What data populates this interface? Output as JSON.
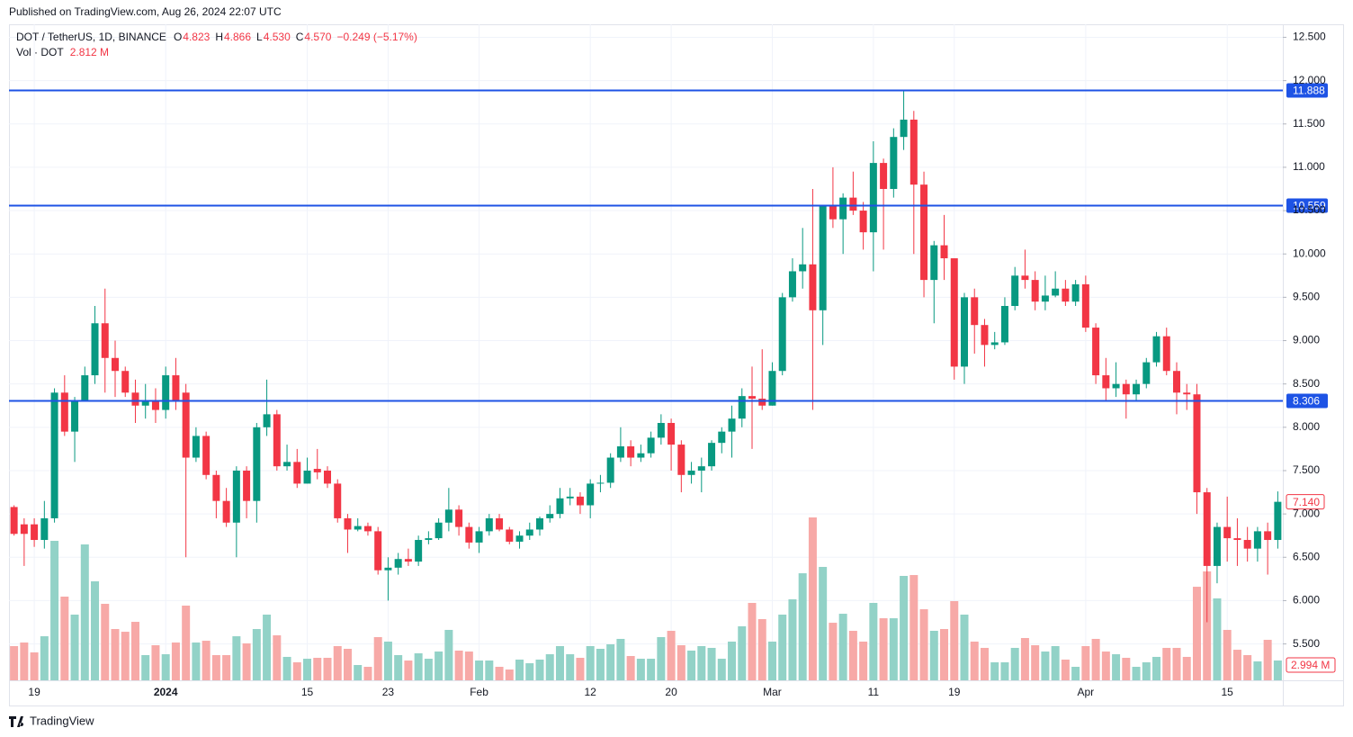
{
  "published": "Published on TradingView.com, Aug 26, 2024 22:07 UTC",
  "brand": "TradingView",
  "chart_data": {
    "type": "candlestick",
    "title": "DOT / TetherUS, 1D, BINANCE",
    "legend_items": [
      {
        "key": "O",
        "value": "4.823"
      },
      {
        "key": "H",
        "value": "4.866"
      },
      {
        "key": "L",
        "value": "4.530"
      },
      {
        "key": "C",
        "value": "4.570"
      }
    ],
    "change": "−0.249 (−5.17%)",
    "volume_title": "Vol · DOT",
    "volume_value": "2.812 M",
    "up_color": "#089981",
    "down_color": "#f23645",
    "volume_up_color": "#92d2c7",
    "volume_down_color": "#f7a9a7",
    "level_color": "#1e53e5",
    "grid": true,
    "categories": [
      null,
      null,
      "19",
      null,
      null,
      null,
      null,
      null,
      null,
      null,
      null,
      null,
      null,
      null,
      null,
      "2024",
      null,
      null,
      null,
      null,
      null,
      null,
      null,
      null,
      null,
      null,
      null,
      null,
      null,
      "15",
      null,
      null,
      null,
      null,
      null,
      null,
      null,
      "23",
      null,
      null,
      null,
      null,
      null,
      null,
      null,
      null,
      "Feb",
      null,
      null,
      null,
      null,
      null,
      null,
      null,
      null,
      null,
      null,
      "12",
      null,
      null,
      null,
      null,
      null,
      null,
      null,
      "20",
      null,
      null,
      null,
      null,
      null,
      null,
      null,
      null,
      null,
      "Mar",
      null,
      null,
      null,
      null,
      null,
      null,
      null,
      null,
      null,
      "11",
      null,
      null,
      null,
      null,
      null,
      null,
      null,
      "19",
      null,
      null,
      null,
      null,
      null,
      null,
      null,
      null,
      null,
      null,
      null,
      null,
      "Apr",
      null,
      null,
      null,
      null,
      null,
      null,
      null,
      null,
      null,
      null,
      null,
      null,
      null,
      "15",
      null,
      null,
      null,
      null,
      null
    ],
    "open": [
      7.08,
      6.88,
      6.88,
      6.7,
      6.95,
      8.4,
      7.95,
      8.3,
      8.6,
      9.2,
      8.8,
      8.65,
      8.4,
      8.25,
      8.3,
      8.2,
      8.6,
      8.4,
      7.65,
      7.9,
      7.45,
      7.15,
      6.9,
      7.5,
      7.15,
      8.0,
      8.15,
      7.55,
      7.6,
      7.35,
      7.52,
      7.5,
      7.35,
      6.95,
      6.82,
      6.86,
      6.8,
      6.35,
      6.38,
      6.48,
      6.45,
      6.7,
      6.72,
      6.9,
      7.05,
      6.85,
      6.67,
      6.8,
      6.95,
      6.82,
      6.68,
      6.75,
      6.82,
      6.95,
      7.0,
      7.18,
      7.2,
      7.1,
      7.35,
      7.36,
      7.65,
      7.78,
      7.65,
      7.7,
      7.88,
      8.05,
      7.8,
      7.45,
      7.5,
      7.55,
      7.82,
      7.95,
      8.1,
      8.36,
      8.33,
      8.25,
      8.65,
      9.5,
      9.8,
      9.88,
      9.35,
      10.55,
      10.4,
      10.65,
      10.5,
      10.25,
      11.05,
      10.75,
      11.35,
      11.55,
      10.8,
      9.7,
      10.1,
      9.95,
      8.7,
      9.5,
      9.18,
      8.95,
      8.98,
      9.4,
      9.75,
      9.7,
      9.45,
      9.52,
      9.6,
      9.45,
      9.65,
      9.15,
      8.6,
      8.45,
      8.5,
      8.38,
      8.5,
      8.75,
      9.05,
      8.65,
      8.4,
      8.38,
      7.25,
      6.4,
      6.85,
      6.72,
      6.7,
      6.6,
      6.8,
      6.7
    ],
    "high": [
      7.1,
      6.95,
      6.95,
      7.15,
      8.45,
      8.6,
      8.35,
      8.7,
      9.4,
      9.6,
      9.0,
      8.7,
      8.55,
      8.5,
      8.45,
      8.7,
      8.8,
      8.5,
      8.0,
      7.95,
      7.5,
      7.3,
      7.55,
      7.55,
      8.05,
      8.55,
      8.2,
      7.8,
      7.75,
      7.65,
      7.75,
      7.55,
      7.4,
      7.0,
      6.95,
      6.9,
      6.85,
      6.5,
      6.55,
      6.6,
      6.75,
      6.8,
      6.95,
      7.3,
      7.1,
      6.9,
      6.85,
      7.0,
      7.0,
      6.85,
      6.8,
      6.9,
      6.97,
      7.1,
      7.3,
      7.3,
      7.25,
      7.4,
      7.45,
      7.7,
      8.0,
      7.85,
      7.8,
      7.95,
      8.15,
      8.1,
      7.85,
      7.6,
      7.65,
      7.85,
      8.0,
      8.25,
      8.45,
      8.7,
      8.9,
      8.75,
      9.55,
      9.95,
      10.3,
      10.75,
      10.55,
      11.0,
      10.7,
      10.95,
      10.6,
      11.3,
      11.1,
      11.45,
      11.888,
      11.65,
      10.95,
      10.15,
      10.45,
      9.95,
      9.55,
      9.6,
      9.25,
      9.1,
      9.5,
      9.85,
      10.05,
      9.8,
      9.75,
      9.8,
      9.7,
      9.7,
      9.75,
      9.2,
      8.8,
      8.75,
      8.55,
      8.55,
      8.8,
      9.1,
      9.15,
      8.75,
      8.5,
      8.5,
      7.3,
      6.9,
      7.2,
      6.95,
      6.85,
      6.85,
      6.9,
      7.26
    ],
    "low": [
      6.75,
      6.4,
      6.62,
      6.6,
      6.9,
      7.9,
      7.6,
      8.3,
      8.5,
      8.4,
      8.35,
      8.35,
      8.05,
      8.1,
      8.05,
      8.1,
      8.2,
      6.5,
      7.6,
      7.4,
      6.95,
      6.85,
      6.5,
      6.95,
      6.9,
      7.9,
      7.5,
      7.5,
      7.3,
      7.35,
      7.4,
      7.3,
      6.9,
      6.55,
      6.8,
      6.75,
      6.3,
      6.0,
      6.3,
      6.4,
      6.4,
      6.65,
      6.7,
      6.8,
      6.75,
      6.6,
      6.55,
      6.75,
      6.8,
      6.65,
      6.6,
      6.7,
      6.75,
      6.9,
      6.95,
      7.1,
      7.0,
      6.95,
      7.25,
      7.3,
      7.6,
      7.55,
      7.6,
      7.65,
      7.8,
      7.5,
      7.25,
      7.35,
      7.25,
      7.5,
      7.7,
      7.65,
      8.0,
      7.75,
      8.2,
      8.25,
      8.6,
      9.45,
      9.6,
      8.2,
      8.95,
      10.3,
      10.0,
      10.45,
      10.05,
      9.8,
      10.05,
      10.65,
      11.2,
      10.0,
      9.5,
      9.2,
      9.7,
      8.55,
      8.5,
      8.85,
      8.7,
      8.9,
      8.95,
      9.35,
      9.6,
      9.35,
      9.35,
      9.5,
      9.4,
      9.4,
      9.1,
      8.5,
      8.3,
      8.35,
      8.1,
      8.3,
      8.45,
      8.7,
      8.6,
      8.15,
      8.2,
      7.0,
      5.75,
      6.2,
      6.45,
      6.4,
      6.45,
      6.45,
      6.3,
      6.6
    ],
    "close": [
      6.77,
      6.77,
      6.7,
      6.95,
      8.4,
      7.95,
      8.3,
      8.6,
      9.2,
      8.8,
      8.65,
      8.4,
      8.25,
      8.3,
      8.2,
      8.6,
      8.3,
      7.65,
      7.9,
      7.45,
      7.15,
      6.9,
      7.5,
      7.15,
      8.0,
      8.15,
      7.55,
      7.6,
      7.35,
      7.5,
      7.48,
      7.35,
      6.95,
      6.82,
      6.86,
      6.8,
      6.35,
      6.38,
      6.48,
      6.45,
      6.7,
      6.72,
      6.9,
      7.05,
      6.85,
      6.67,
      6.8,
      6.95,
      6.82,
      6.68,
      6.75,
      6.82,
      6.95,
      7.0,
      7.18,
      7.2,
      7.1,
      7.35,
      7.36,
      7.65,
      7.78,
      7.65,
      7.7,
      7.88,
      8.05,
      7.8,
      7.45,
      7.5,
      7.55,
      7.82,
      7.95,
      8.1,
      8.36,
      8.33,
      8.25,
      8.65,
      9.5,
      9.8,
      9.88,
      9.35,
      10.55,
      10.4,
      10.65,
      10.5,
      10.25,
      11.05,
      10.75,
      11.35,
      11.55,
      10.8,
      9.7,
      10.1,
      9.95,
      8.7,
      9.5,
      9.18,
      8.95,
      8.98,
      9.4,
      9.75,
      9.7,
      9.45,
      9.52,
      9.6,
      9.45,
      9.65,
      9.15,
      8.6,
      8.45,
      8.5,
      8.38,
      8.5,
      8.75,
      9.05,
      8.65,
      8.4,
      8.38,
      7.25,
      6.4,
      6.85,
      6.72,
      6.7,
      6.6,
      6.8,
      6.7,
      7.14
    ],
    "volume": [
      5.17,
      5.71,
      4.22,
      6.66,
      21.08,
      12.65,
      9.93,
      20.54,
      14.96,
      11.56,
      7.75,
      7.34,
      8.84,
      3.81,
      5.3,
      3.94,
      5.71,
      11.29,
      5.71,
      5.98,
      3.81,
      3.81,
      6.66,
      5.58,
      7.75,
      9.93,
      6.8,
      3.54,
      2.72,
      3.26,
      3.4,
      3.4,
      5.17,
      4.76,
      2.31,
      2.04,
      6.53,
      5.85,
      3.81,
      2.99,
      4.08,
      3.26,
      4.35,
      7.62,
      4.49,
      4.35,
      2.99,
      2.99,
      2.04,
      1.63,
      3.13,
      2.58,
      3.13,
      3.94,
      5.17,
      3.94,
      3.4,
      5.17,
      4.76,
      5.44,
      6.26,
      3.67,
      3.26,
      3.26,
      6.53,
      7.48,
      5.3,
      4.49,
      5.17,
      4.9,
      3.26,
      5.85,
      8.16,
      11.7,
      9.25,
      5.85,
      9.93,
      12.24,
      16.18,
      24.62,
      17.14,
      8.7,
      10.06,
      7.48,
      5.85,
      11.7,
      9.38,
      9.38,
      15.78,
      15.91,
      10.74,
      7.48,
      7.75,
      11.97,
      9.93,
      5.85,
      4.9,
      2.72,
      2.72,
      4.9,
      6.39,
      5.3,
      4.35,
      5.17,
      3.13,
      2.04,
      5.17,
      6.26,
      4.35,
      3.94,
      3.4,
      2.04,
      2.72,
      3.54,
      4.9,
      4.9,
      3.54,
      14.14,
      16.46,
      12.38,
      7.62,
      4.62,
      3.81,
      2.86,
      6.12,
      2.994
    ],
    "last_close_label": "7.140",
    "last_volume_label": "2.994 M",
    "levels": [
      11.888,
      10.559,
      8.306
    ],
    "ylim": [
      4.8,
      12.65
    ],
    "yticks": [
      {
        "value": 5.5,
        "label": "5.500"
      },
      {
        "value": 6,
        "label": "6.000"
      },
      {
        "value": 6.5,
        "label": "6.500"
      },
      {
        "value": 7,
        "label": "7.000"
      },
      {
        "value": 7.5,
        "label": "7.500"
      },
      {
        "value": 8,
        "label": "8.000"
      },
      {
        "value": 8.5,
        "label": "8.500"
      },
      {
        "value": 9,
        "label": "9.000"
      },
      {
        "value": 9.5,
        "label": "9.500"
      },
      {
        "value": 10,
        "label": "10.000"
      },
      {
        "value": 10.5,
        "label": "10.500"
      },
      {
        "value": 11,
        "label": "11.000"
      },
      {
        "value": 11.5,
        "label": "11.500"
      },
      {
        "value": 12,
        "label": "12.000"
      },
      {
        "value": 12.5,
        "label": "12.500"
      }
    ]
  }
}
